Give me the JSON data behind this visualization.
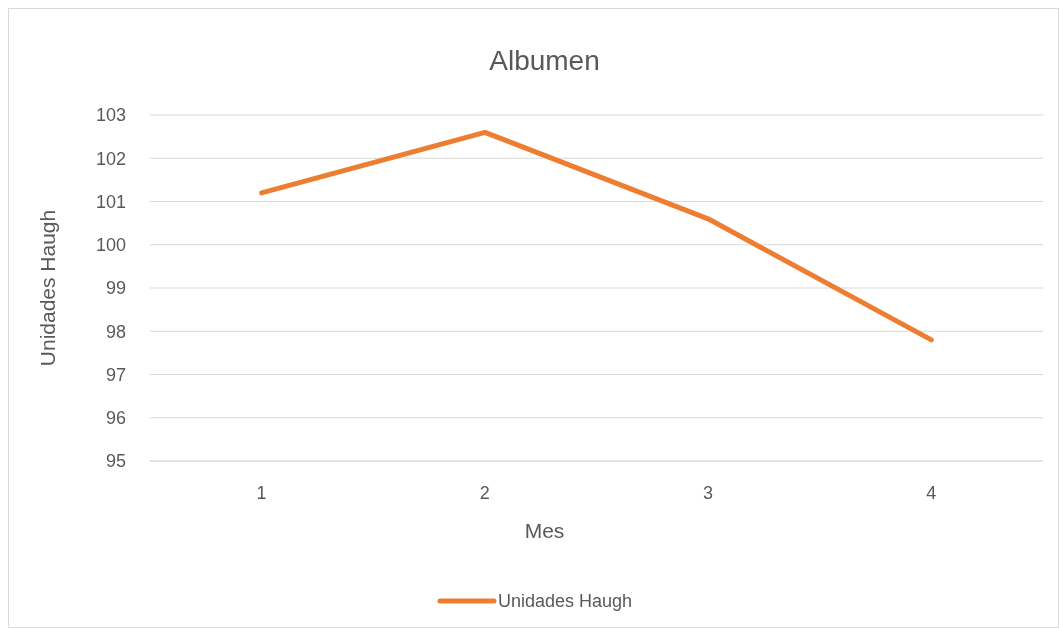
{
  "chart_data": {
    "type": "line",
    "title": "Albumen",
    "xlabel": "Mes",
    "ylabel": "Unidades Haugh",
    "categories": [
      "1",
      "2",
      "3",
      "4"
    ],
    "series": [
      {
        "name": "Unidades Haugh",
        "color": "#ed7d31",
        "values": [
          101.2,
          102.6,
          100.6,
          97.8
        ]
      }
    ],
    "ylim": [
      95,
      103
    ],
    "yticks": [
      95,
      96,
      97,
      98,
      99,
      100,
      101,
      102,
      103
    ],
    "grid": "y",
    "legend": "bottom",
    "marker": "none",
    "line_style": "solid"
  }
}
